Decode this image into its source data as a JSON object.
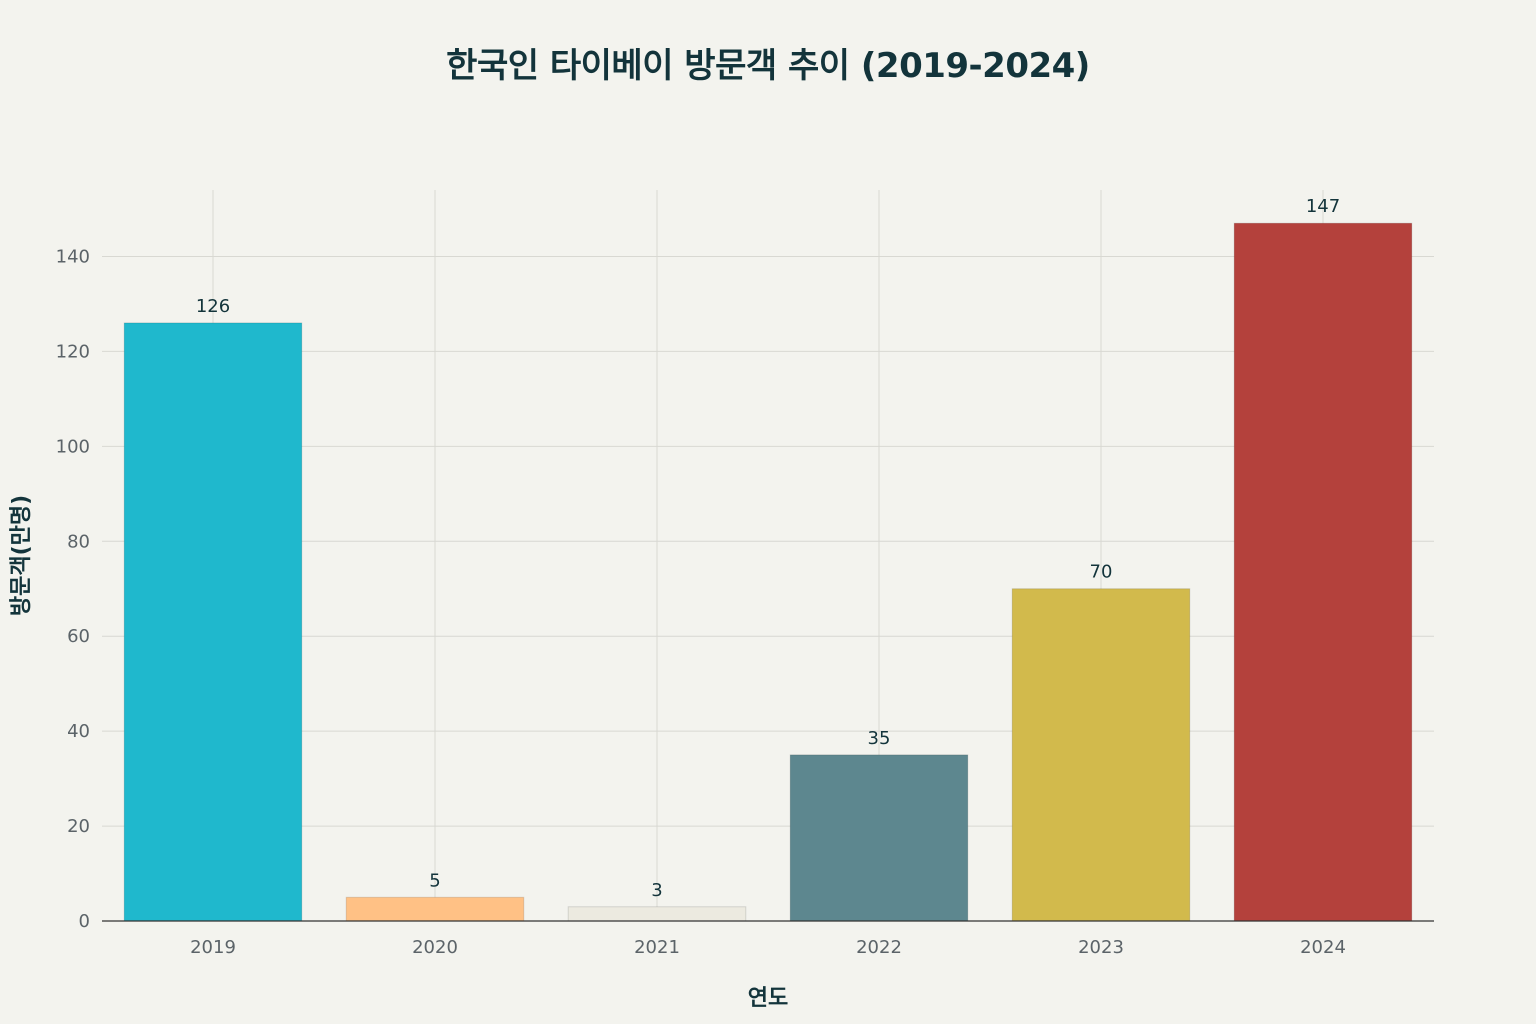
{
  "chart_data": {
    "type": "bar",
    "title": "한국인 타이베이 방문객 추이 (2019-2024)",
    "xlabel": "연도",
    "ylabel": "방문객(만명)",
    "categories": [
      "2019",
      "2020",
      "2021",
      "2022",
      "2023",
      "2024"
    ],
    "values": [
      126,
      5,
      3,
      35,
      70,
      147
    ],
    "data_labels": [
      "126",
      "5",
      "3",
      "35",
      "70",
      "147"
    ],
    "colors": [
      "#1fb8cd",
      "#ffc185",
      "#eceae0",
      "#5d878f",
      "#d2ba4c",
      "#b4413c"
    ],
    "ylim": [
      0,
      154
    ],
    "yticks": [
      0,
      20,
      40,
      60,
      80,
      100,
      120,
      140
    ],
    "ytick_labels": [
      "0",
      "20",
      "40",
      "60",
      "80",
      "100",
      "120",
      "140"
    ],
    "grid": true,
    "legend": "none"
  }
}
